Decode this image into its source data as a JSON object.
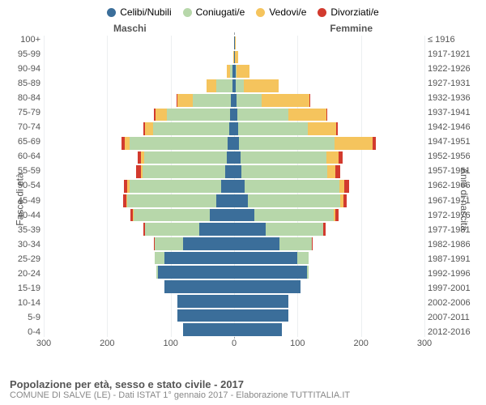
{
  "legend": [
    {
      "label": "Celibi/Nubili",
      "color": "#3b6e9a"
    },
    {
      "label": "Coniugati/e",
      "color": "#b7d7aa"
    },
    {
      "label": "Vedovi/e",
      "color": "#f5c45d"
    },
    {
      "label": "Divorziati/e",
      "color": "#d23a2e"
    }
  ],
  "headers": {
    "male": "Maschi",
    "female": "Femmine"
  },
  "axis_titles": {
    "left": "Fasce di età",
    "right": "Anni di nascita"
  },
  "age_labels": [
    "100+",
    "95-99",
    "90-94",
    "85-89",
    "80-84",
    "75-79",
    "70-74",
    "65-69",
    "60-64",
    "55-59",
    "50-54",
    "45-49",
    "40-44",
    "35-39",
    "30-34",
    "25-29",
    "20-24",
    "15-19",
    "10-14",
    "5-9",
    "0-4"
  ],
  "birth_labels": [
    "≤ 1916",
    "1917-1921",
    "1922-1926",
    "1927-1931",
    "1932-1936",
    "1937-1941",
    "1942-1946",
    "1947-1951",
    "1952-1956",
    "1957-1961",
    "1962-1966",
    "1967-1971",
    "1972-1976",
    "1977-1981",
    "1982-1986",
    "1987-1991",
    "1992-1996",
    "1997-2001",
    "2002-2006",
    "2007-2011",
    "2012-2016"
  ],
  "x_ticks": [
    300,
    200,
    100,
    0,
    100,
    200,
    300
  ],
  "x_max": 300,
  "colors": {
    "celibi": "#3b6e9a",
    "coniugati": "#b7d7aa",
    "vedovi": "#f5c45d",
    "divorziati": "#d23a2e",
    "grid": "#eceff1",
    "centerline": "#9aa0a6",
    "text": "#555555",
    "subtext": "#888888",
    "background": "#ffffff"
  },
  "data": {
    "male": {
      "celibi": [
        0,
        0,
        2,
        3,
        5,
        6,
        8,
        10,
        12,
        14,
        20,
        28,
        38,
        55,
        80,
        110,
        120,
        110,
        90,
        90,
        80
      ],
      "coniugati": [
        0,
        0,
        4,
        25,
        60,
        100,
        120,
        155,
        130,
        130,
        145,
        140,
        120,
        85,
        45,
        15,
        2,
        0,
        0,
        0,
        0
      ],
      "vedovi": [
        0,
        1,
        5,
        15,
        25,
        18,
        12,
        8,
        5,
        3,
        3,
        2,
        1,
        0,
        0,
        0,
        0,
        0,
        0,
        0,
        0
      ],
      "divorziati": [
        0,
        0,
        0,
        0,
        1,
        2,
        3,
        4,
        5,
        7,
        6,
        5,
        4,
        3,
        1,
        0,
        0,
        0,
        0,
        0,
        0
      ]
    },
    "female": {
      "celibi": [
        1,
        1,
        2,
        3,
        4,
        5,
        6,
        8,
        10,
        12,
        16,
        22,
        32,
        50,
        72,
        100,
        115,
        105,
        85,
        85,
        75
      ],
      "coniugati": [
        0,
        0,
        2,
        12,
        40,
        80,
        110,
        150,
        135,
        135,
        150,
        145,
        125,
        90,
        50,
        18,
        3,
        0,
        0,
        0,
        0
      ],
      "vedovi": [
        2,
        6,
        20,
        55,
        75,
        60,
        45,
        60,
        20,
        12,
        8,
        5,
        3,
        1,
        0,
        0,
        0,
        0,
        0,
        0,
        0
      ],
      "divorziati": [
        0,
        0,
        0,
        0,
        1,
        2,
        3,
        5,
        6,
        8,
        7,
        6,
        5,
        3,
        1,
        0,
        0,
        0,
        0,
        0,
        0
      ]
    }
  },
  "footer": {
    "title": "Popolazione per età, sesso e stato civile - 2017",
    "sub": "COMUNE DI SALVE (LE) - Dati ISTAT 1° gennaio 2017 - Elaborazione TUTTITALIA.IT"
  },
  "fontsize": {
    "legend": 12,
    "axis": 11,
    "title": 13,
    "sub": 11,
    "headers": 12
  }
}
